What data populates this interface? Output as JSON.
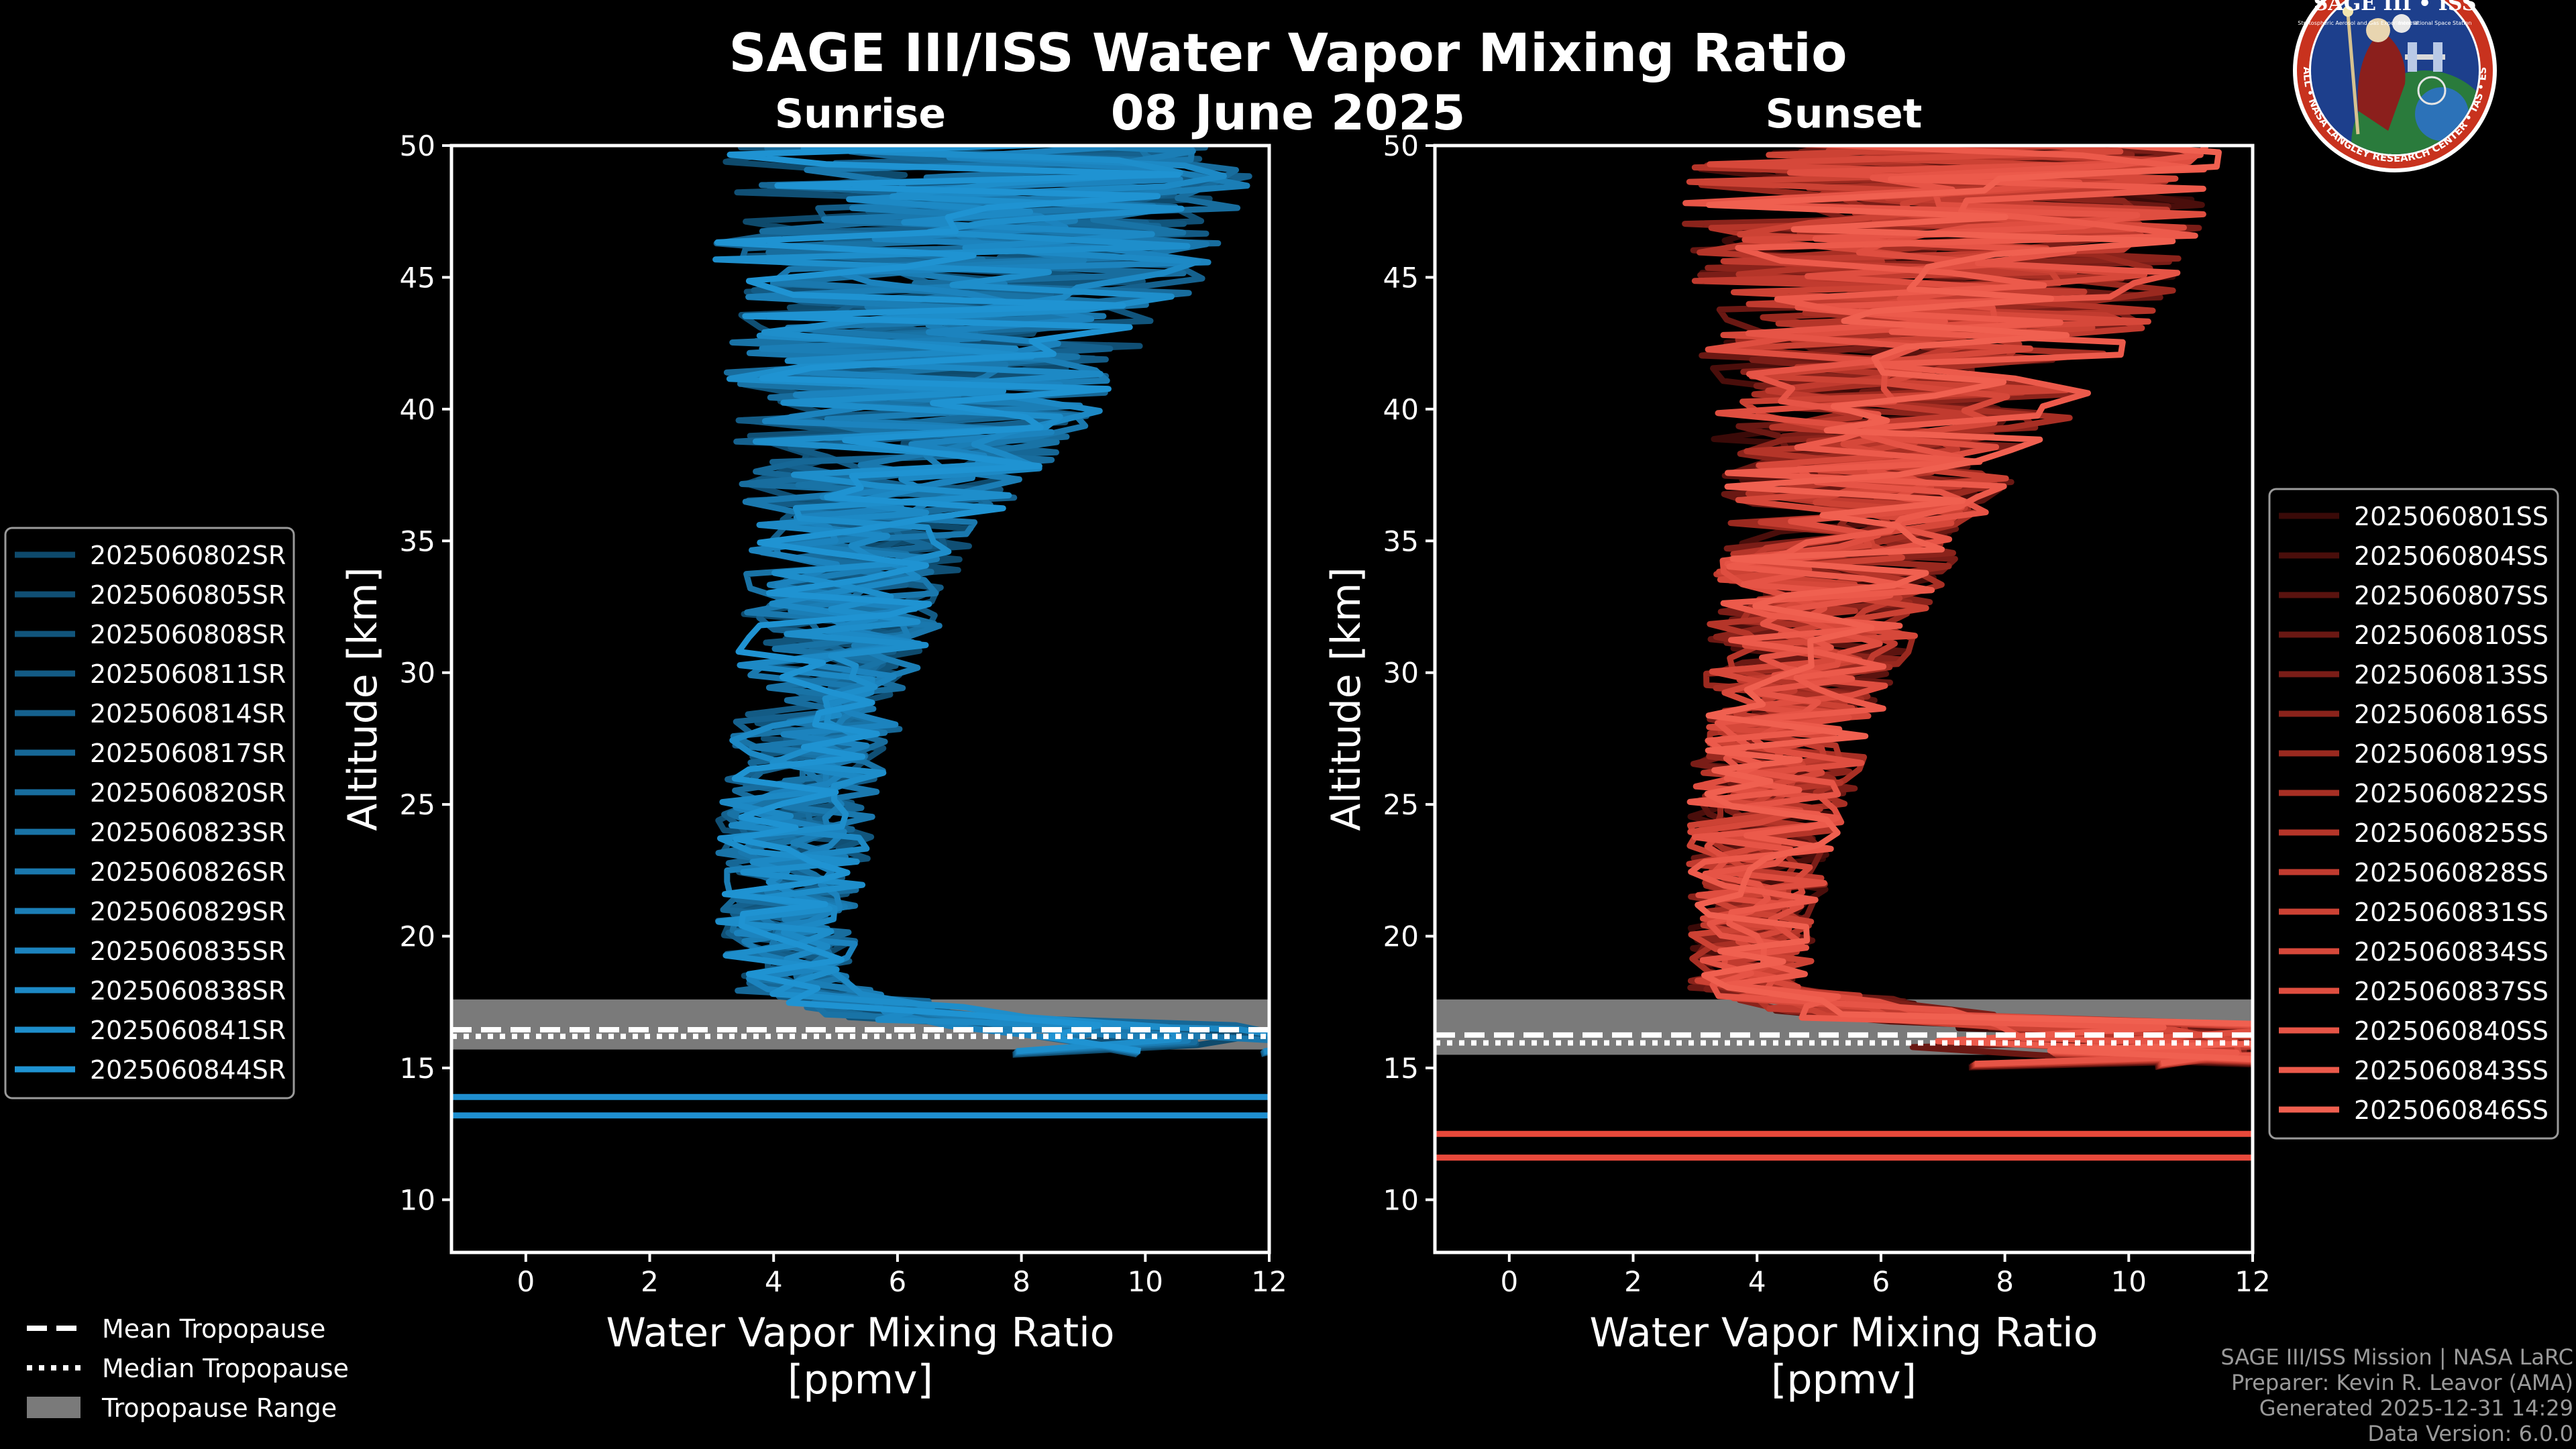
{
  "title": "SAGE III/ISS Water Vapor Mixing Ratio",
  "date": "08 June 2025",
  "logo": {
    "top_text": "SAGE III • ISS",
    "sub_left": "Stratospheric Aerosol and Gas Experiment III",
    "sub_right": "International Space Station",
    "ring_text": "BALL • NASA LANGLEY RESEARCH CENTER • TAS • ESA"
  },
  "footer": {
    "line1": "SAGE III/ISS Mission | NASA LaRC",
    "line2": "Preparer: Kevin R. Leavor (AMA)",
    "line3": "Generated 2025-12-31 14:29",
    "line4": "Data Version: 6.0.0"
  },
  "colors": {
    "sunrise": "#1f8fd0",
    "sunset": "#ee5a4a",
    "tropopause_band": "#7a7a7a",
    "axes": "#ffffff",
    "background": "#000000"
  },
  "tropopause_legend": {
    "mean": "Mean Tropopause",
    "median": "Median Tropopause",
    "range": "Tropopause Range"
  },
  "chart_data": [
    {
      "type": "line",
      "title": "Sunrise",
      "xlabel": "Water Vapor Mixing Ratio\n[ppmv]",
      "ylabel": "Altitude [km]",
      "xlim": [
        -1.2,
        12
      ],
      "ylim": [
        8,
        50
      ],
      "xticks": [
        0,
        2,
        4,
        6,
        8,
        10,
        12
      ],
      "yticks": [
        10,
        15,
        20,
        25,
        30,
        35,
        40,
        45,
        50
      ],
      "series_names": [
        "2025060802SR",
        "2025060805SR",
        "2025060808SR",
        "2025060811SR",
        "2025060814SR",
        "2025060817SR",
        "2025060820SR",
        "2025060823SR",
        "2025060826SR",
        "2025060829SR",
        "2025060835SR",
        "2025060838SR",
        "2025060841SR",
        "2025060844SR"
      ],
      "series_colors": [
        "#0e4a6c",
        "#104f74",
        "#11557c",
        "#135b85",
        "#15618e",
        "#166796",
        "#186d9e",
        "#1973a6",
        "#1a78ae",
        "#1b7eb6",
        "#1c83be",
        "#1d89c5",
        "#1e8ecb",
        "#1f93d2"
      ],
      "profile_model": {
        "alt_km": [
          16,
          18,
          20,
          25,
          30,
          35,
          40,
          45,
          50
        ],
        "median_ppmv": [
          8.5,
          4.3,
          4.2,
          4.4,
          4.9,
          5.4,
          6.3,
          7.0,
          7.5
        ],
        "spread_ppmv": [
          2.0,
          1.2,
          1.1,
          1.3,
          1.5,
          1.8,
          3.0,
          4.0,
          4.5
        ]
      },
      "bottom_lines_km": [
        13.9,
        13.2
      ],
      "tropopause": {
        "range_km": [
          15.7,
          17.6
        ],
        "mean_km": 16.45,
        "median_km": 16.2
      }
    },
    {
      "type": "line",
      "title": "Sunset",
      "xlabel": "Water Vapor Mixing Ratio\n[ppmv]",
      "ylabel": "Altitude [km]",
      "xlim": [
        -1.2,
        12
      ],
      "ylim": [
        8,
        50
      ],
      "xticks": [
        0,
        2,
        4,
        6,
        8,
        10,
        12
      ],
      "yticks": [
        10,
        15,
        20,
        25,
        30,
        35,
        40,
        45,
        50
      ],
      "series_names": [
        "2025060801SS",
        "2025060804SS",
        "2025060807SS",
        "2025060810SS",
        "2025060813SS",
        "2025060816SS",
        "2025060819SS",
        "2025060822SS",
        "2025060825SS",
        "2025060828SS",
        "2025060831SS",
        "2025060834SS",
        "2025060837SS",
        "2025060840SS",
        "2025060843SS",
        "2025060846SS"
      ],
      "series_colors": [
        "#3a0a08",
        "#4a0e0b",
        "#5a130f",
        "#6a1813",
        "#7a1d17",
        "#8a231b",
        "#9a291f",
        "#a82f24",
        "#b53529",
        "#c13b2f",
        "#cc4234",
        "#d6483a",
        "#df4e40",
        "#e65446",
        "#ec5a4b",
        "#f06050"
      ],
      "profile_model": {
        "alt_km": [
          16,
          18,
          20,
          25,
          30,
          35,
          40,
          45,
          50
        ],
        "median_ppmv": [
          9.0,
          3.9,
          3.9,
          4.2,
          4.7,
          5.4,
          6.2,
          6.9,
          7.2
        ],
        "spread_ppmv": [
          3.0,
          1.0,
          1.0,
          1.3,
          1.6,
          2.0,
          3.0,
          4.0,
          4.5
        ]
      },
      "bottom_lines_km": [
        12.5,
        11.6
      ],
      "tropopause": {
        "range_km": [
          15.5,
          17.6
        ],
        "mean_km": 16.25,
        "median_km": 15.95
      }
    }
  ]
}
